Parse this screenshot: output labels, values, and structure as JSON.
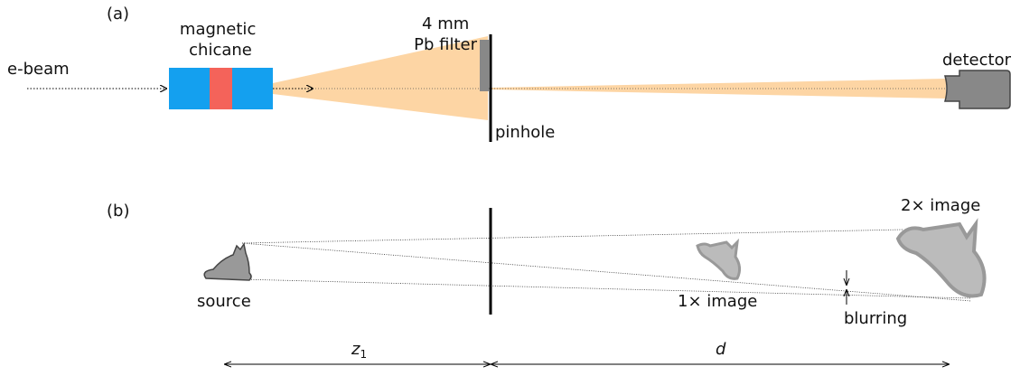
{
  "panel_a": {
    "label": "(a)",
    "chicane": [
      "magnetic",
      "chicane"
    ],
    "beam": "e-beam",
    "filter": [
      "4 mm",
      "Pb filter"
    ],
    "pinhole": "pinhole",
    "detector": "detector"
  },
  "panel_b": {
    "label": "(b)",
    "source": "source",
    "image_1x": "1× image",
    "image_2x": "2× image",
    "blurring": "blurring",
    "distance_z": {
      "var": "z",
      "sub": "1"
    },
    "distance_d": "d"
  }
}
